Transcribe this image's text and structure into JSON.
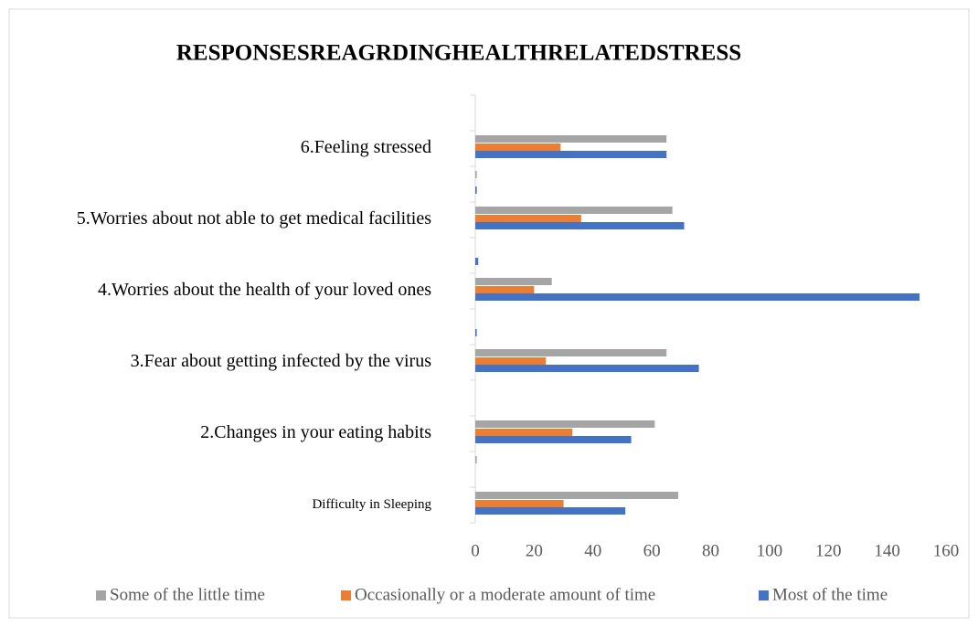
{
  "chart_data": {
    "type": "hbar",
    "title": "RESPONSESREAGRDINGHEALTHRELATEDSTRESS",
    "categories": [
      "Difficulty in Sleeping",
      null,
      "2.Changes in your eating habits",
      null,
      "3.Fear about getting infected by the virus",
      null,
      "4.Worries about the health of your loved ones",
      null,
      "5.Worries about not able to get medical facilities",
      null,
      "6.Feeling stressed",
      null
    ],
    "series": [
      {
        "name": "Some of the little time",
        "color": "#a5a5a5",
        "values": [
          69,
          0.5,
          61,
          null,
          65,
          null,
          26,
          null,
          67,
          0.5,
          65,
          null
        ]
      },
      {
        "name": "Occasionally or a moderate amount of time",
        "color": "#ed7d31",
        "values": [
          30,
          null,
          33,
          null,
          24,
          null,
          20,
          null,
          36,
          null,
          29,
          null
        ]
      },
      {
        "name": "Most of the time",
        "color": "#4472c4",
        "values": [
          51,
          null,
          53,
          null,
          76,
          0.5,
          151,
          1,
          71,
          0.5,
          65,
          null
        ]
      }
    ],
    "xlim": [
      0,
      160
    ],
    "xticks": [
      0,
      20,
      40,
      60,
      80,
      100,
      120,
      140,
      160
    ],
    "grid": false,
    "legend": "bottom"
  }
}
